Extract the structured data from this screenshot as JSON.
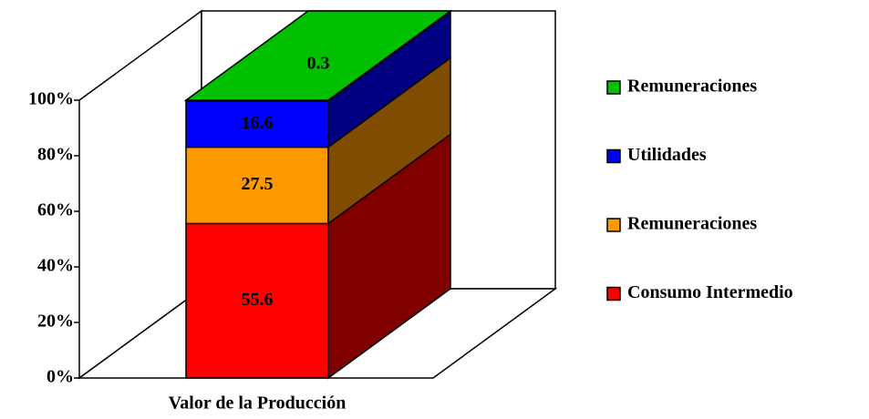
{
  "chart_data": {
    "type": "bar3d_stacked",
    "categories": [
      "Valor de la Producción"
    ],
    "series": [
      {
        "name": "Consumo Intermedio",
        "color": "#ff0000",
        "side_color": "#800000",
        "values": [
          55.6
        ]
      },
      {
        "name": "Remuneraciones",
        "color": "#ff9900",
        "side_color": "#804c00",
        "values": [
          27.5
        ]
      },
      {
        "name": "Utilidades",
        "color": "#0000ff",
        "side_color": "#000080",
        "values": [
          16.6
        ]
      },
      {
        "name": "Remuneraciones",
        "color": "#00c000",
        "side_color": "#006000",
        "values": [
          0.3
        ]
      }
    ],
    "ylim": [
      0,
      100
    ],
    "yticks": [
      {
        "value": 0,
        "label": "0%"
      },
      {
        "value": 20,
        "label": "20%"
      },
      {
        "value": 40,
        "label": "40%"
      },
      {
        "value": 60,
        "label": "60%"
      },
      {
        "value": 80,
        "label": "80%"
      },
      {
        "value": 100,
        "label": "100%"
      }
    ]
  }
}
